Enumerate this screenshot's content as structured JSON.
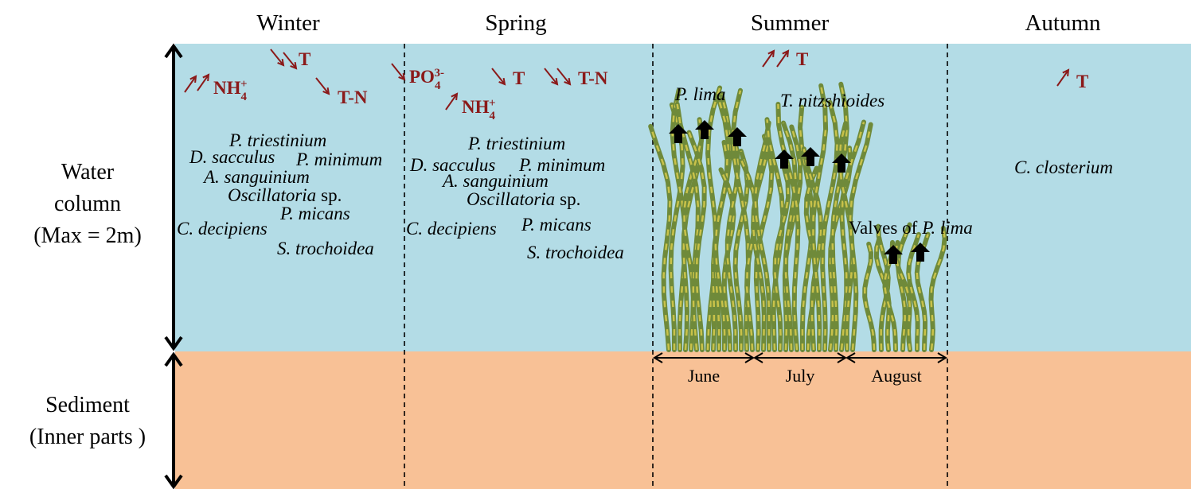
{
  "seasons": [
    "Winter",
    "Spring",
    "Summer",
    "Autumn"
  ],
  "layers": {
    "water": {
      "lines": [
        "Water",
        "column",
        "(Max = 2m)"
      ]
    },
    "sediment": {
      "lines": [
        "Sediment",
        "(Inner parts )"
      ]
    }
  },
  "nutrients": {
    "winter": [
      {
        "base": "NH",
        "sub": "4",
        "sup": "+"
      },
      {
        "base": "T"
      },
      {
        "base": "T-N"
      }
    ],
    "spring": [
      {
        "base": "PO",
        "sub": "4",
        "sup": "3-"
      },
      {
        "base": "T"
      },
      {
        "base": "T-N"
      },
      {
        "base": "NH",
        "sub": "4",
        "sup": "+"
      }
    ],
    "summer": [
      {
        "base": "T"
      }
    ],
    "autumn": [
      {
        "base": "T"
      }
    ]
  },
  "species": {
    "winter": [
      {
        "italic": "P. triestinium"
      },
      {
        "italic": "D. sacculus"
      },
      {
        "italic": "P. minimum"
      },
      {
        "italic": "A. sanguinium"
      },
      {
        "italic": "Oscillatoria",
        "plain": "sp."
      },
      {
        "italic": "P. micans"
      },
      {
        "italic": "C. decipiens"
      },
      {
        "italic": "S. trochoidea"
      }
    ],
    "spring": [
      {
        "italic": "P. triestinium"
      },
      {
        "italic": "D. sacculus"
      },
      {
        "italic": "P. minimum"
      },
      {
        "italic": "A. sanguinium"
      },
      {
        "italic": "Oscillatoria",
        "plain": "sp."
      },
      {
        "italic": "P. micans"
      },
      {
        "italic": "C. decipiens"
      },
      {
        "italic": "S. trochoidea"
      }
    ],
    "summer": [
      {
        "italic": "P. lima"
      },
      {
        "italic": "T. nitzshioides"
      },
      {
        "plain": "Valves of",
        "italic": "P. lima"
      }
    ],
    "autumn": [
      {
        "italic": "C. closterium"
      }
    ]
  },
  "months": [
    "June",
    "July",
    "August"
  ]
}
